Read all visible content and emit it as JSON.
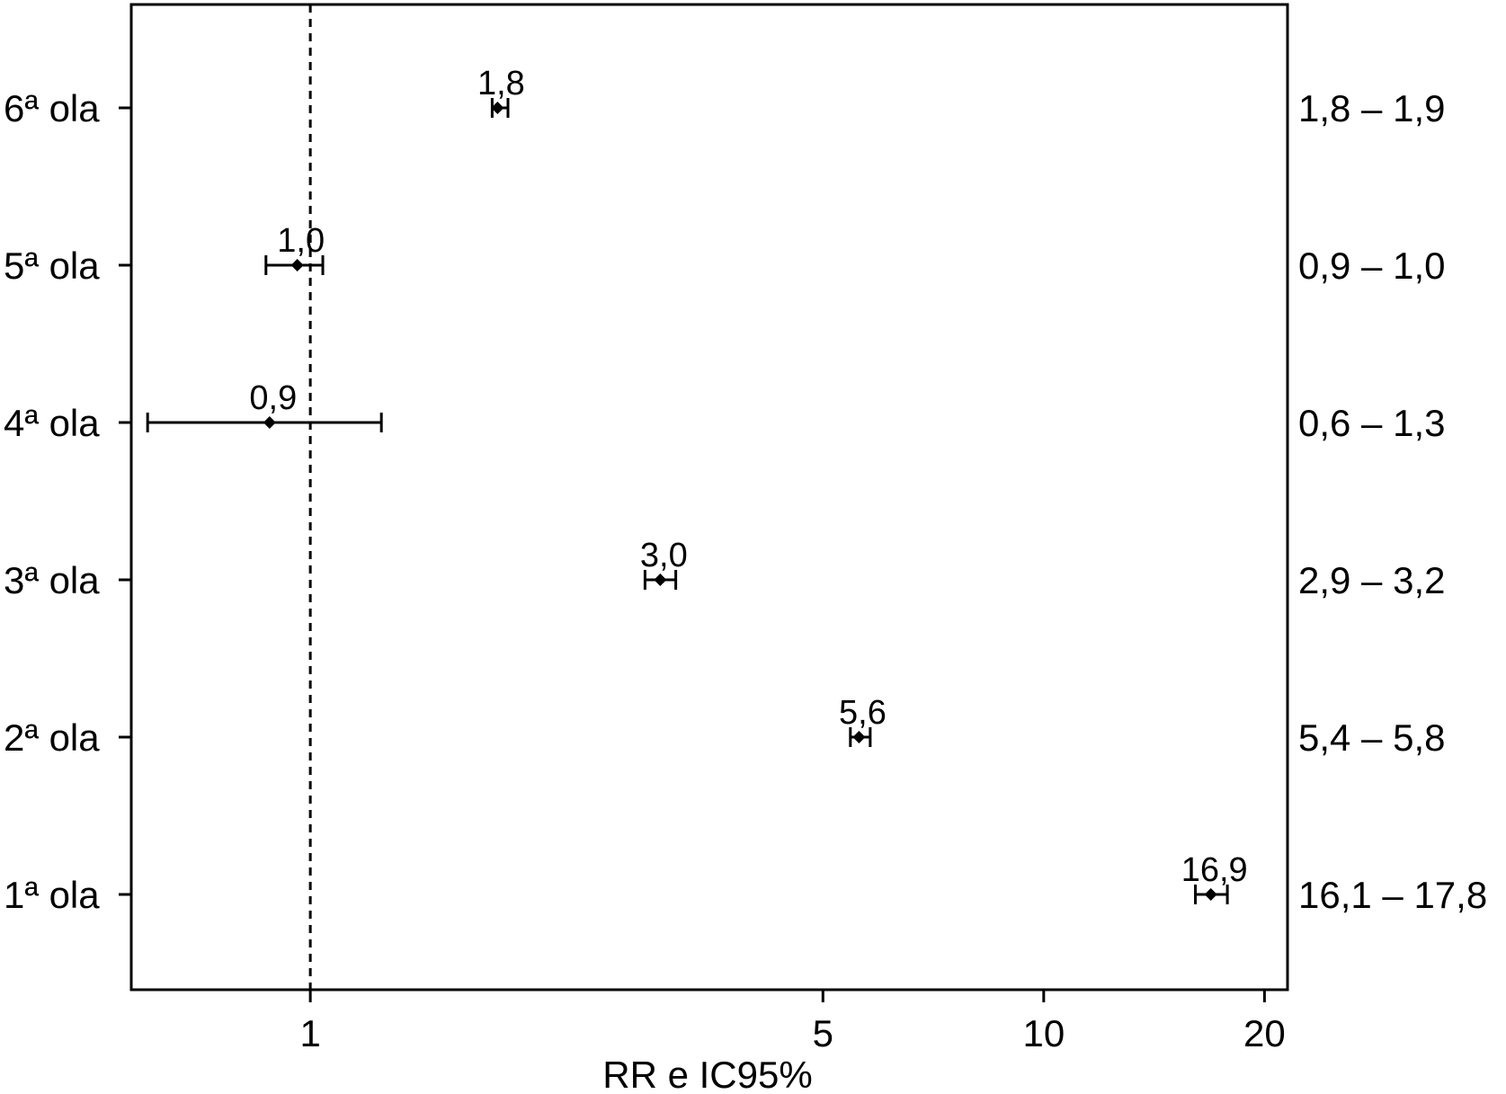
{
  "chart_data": {
    "type": "forest",
    "xlabel": "RR e IC95%",
    "xscale": "log",
    "xlim": [
      0.57,
      21.5
    ],
    "xticks": [
      {
        "value": 1,
        "label": "1"
      },
      {
        "value": 5,
        "label": "5"
      },
      {
        "value": 10,
        "label": "10"
      },
      {
        "value": 20,
        "label": "20"
      }
    ],
    "reference_line": 1,
    "rows": [
      {
        "label": "6ª ola",
        "rr": 1.8,
        "rr_label": "1,8",
        "lo": 1.77,
        "hi": 1.86,
        "ci_label": "1,8 – 1,9"
      },
      {
        "label": "5ª ola",
        "rr": 0.96,
        "rr_label": "1,0",
        "lo": 0.87,
        "hi": 1.04,
        "ci_label": "0,9 – 1,0"
      },
      {
        "label": "4ª ola",
        "rr": 0.88,
        "rr_label": "0,9",
        "lo": 0.6,
        "hi": 1.25,
        "ci_label": "0,6 – 1,3"
      },
      {
        "label": "3ª ola",
        "rr": 3.0,
        "rr_label": "3,0",
        "lo": 2.86,
        "hi": 3.15,
        "ci_label": "2,9 – 3,2"
      },
      {
        "label": "2ª ola",
        "rr": 5.6,
        "rr_label": "5,6",
        "lo": 5.45,
        "hi": 5.8,
        "ci_label": "5,4 – 5,8"
      },
      {
        "label": "1ª ola",
        "rr": 16.9,
        "rr_label": "16,9",
        "lo": 16.1,
        "hi": 17.8,
        "ci_label": "16,1 – 17,8"
      }
    ]
  }
}
